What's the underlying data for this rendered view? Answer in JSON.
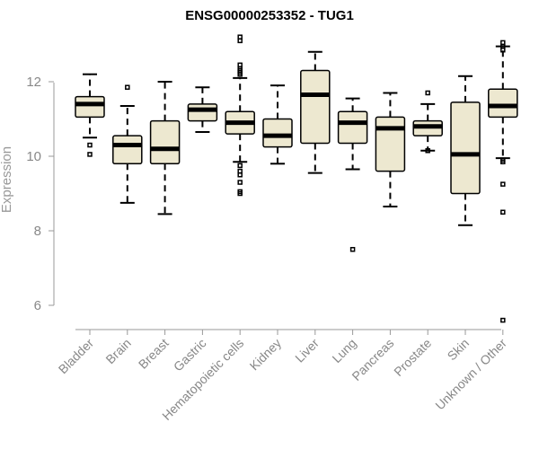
{
  "chart_data": {
    "type": "boxplot",
    "title": "ENSG00000253352 - TUG1",
    "xlabel": "",
    "ylabel": "Expression",
    "ylim": [
      5.3,
      13.3
    ],
    "yticks": [
      6,
      8,
      10,
      12
    ],
    "grid": false,
    "colors": {
      "box_fill": "#ede8d0",
      "stroke": "#000000",
      "axis": "#999999",
      "text": "#888888"
    },
    "categories": [
      "Bladder",
      "Brain",
      "Breast",
      "Gastric",
      "Hematopoietic cells",
      "Kidney",
      "Liver",
      "Lung",
      "Pancreas",
      "Prostate",
      "Skin",
      "Unknown / Other"
    ],
    "boxes": [
      {
        "name": "Bladder",
        "whisker_low": 10.5,
        "q1": 11.05,
        "median": 11.4,
        "q3": 11.6,
        "whisker_high": 12.2,
        "outliers": [
          10.3,
          10.05
        ]
      },
      {
        "name": "Brain",
        "whisker_low": 8.75,
        "q1": 9.8,
        "median": 10.3,
        "q3": 10.55,
        "whisker_high": 11.35,
        "outliers": [
          11.85
        ]
      },
      {
        "name": "Breast",
        "whisker_low": 8.45,
        "q1": 9.8,
        "median": 10.2,
        "q3": 10.95,
        "whisker_high": 12.0,
        "outliers": []
      },
      {
        "name": "Gastric",
        "whisker_low": 10.65,
        "q1": 10.95,
        "median": 11.25,
        "q3": 11.4,
        "whisker_high": 11.85,
        "outliers": []
      },
      {
        "name": "Hematopoietic cells",
        "whisker_low": 9.85,
        "q1": 10.6,
        "median": 10.9,
        "q3": 11.2,
        "whisker_high": 12.1,
        "outliers": [
          13.2,
          13.1,
          12.45,
          12.35,
          12.3,
          12.25,
          12.2,
          9.75,
          9.6,
          9.5,
          9.3,
          9.05,
          9.0
        ]
      },
      {
        "name": "Kidney",
        "whisker_low": 9.8,
        "q1": 10.25,
        "median": 10.55,
        "q3": 11.0,
        "whisker_high": 11.9,
        "outliers": []
      },
      {
        "name": "Liver",
        "whisker_low": 9.55,
        "q1": 10.35,
        "median": 11.65,
        "q3": 12.3,
        "whisker_high": 12.8,
        "outliers": []
      },
      {
        "name": "Lung",
        "whisker_low": 9.65,
        "q1": 10.35,
        "median": 10.9,
        "q3": 11.2,
        "whisker_high": 11.55,
        "outliers": [
          7.5
        ]
      },
      {
        "name": "Pancreas",
        "whisker_low": 8.65,
        "q1": 9.6,
        "median": 10.75,
        "q3": 11.05,
        "whisker_high": 11.7,
        "outliers": []
      },
      {
        "name": "Prostate",
        "whisker_low": 10.15,
        "q1": 10.55,
        "median": 10.8,
        "q3": 10.95,
        "whisker_high": 11.4,
        "outliers": [
          11.7,
          10.15
        ]
      },
      {
        "name": "Skin",
        "whisker_low": 8.15,
        "q1": 9.0,
        "median": 10.05,
        "q3": 11.45,
        "whisker_high": 12.15,
        "outliers": []
      },
      {
        "name": "Unknown / Other",
        "whisker_low": 9.95,
        "q1": 11.05,
        "median": 11.35,
        "q3": 11.8,
        "whisker_high": 12.95,
        "outliers": [
          13.05,
          12.95,
          12.85,
          9.9,
          9.85,
          9.25,
          8.5,
          5.6
        ]
      }
    ]
  }
}
